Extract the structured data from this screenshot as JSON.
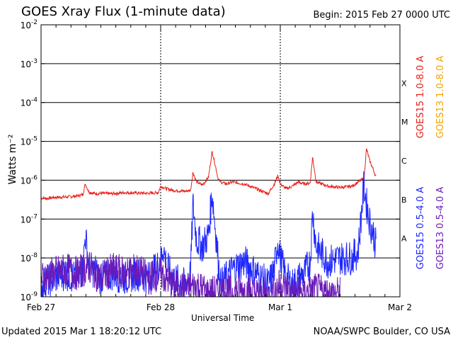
{
  "header": {
    "title": "GOES Xray Flux (1-minute data)",
    "begin": "Begin:  2015 Feb 27 0000 UTC"
  },
  "footer": {
    "updated": "Updated 2015 Mar  1 18:20:12 UTC",
    "credit": "NOAA/SWPC Boulder, CO USA"
  },
  "chart_data": {
    "type": "line",
    "title": "GOES Xray Flux (1-minute data)",
    "xlabel": "Universal Time",
    "ylabel": "Watts m⁻²",
    "yscale": "log",
    "ylim": [
      1e-09,
      0.01
    ],
    "xlim_days": [
      0,
      3
    ],
    "x_ticks": [
      "Feb 27",
      "Feb 28",
      "Mar 1",
      "Mar 2"
    ],
    "y_ticks": [
      {
        "base": "10",
        "exp": "-2"
      },
      {
        "base": "10",
        "exp": "-3"
      },
      {
        "base": "10",
        "exp": "-4"
      },
      {
        "base": "10",
        "exp": "-5"
      },
      {
        "base": "10",
        "exp": "-6"
      },
      {
        "base": "10",
        "exp": "-7"
      },
      {
        "base": "10",
        "exp": "-8"
      },
      {
        "base": "10",
        "exp": "-9"
      }
    ],
    "flare_classes": [
      {
        "label": "X",
        "level": 0.0001
      },
      {
        "label": "M",
        "level": 1e-05
      },
      {
        "label": "C",
        "level": 1e-06
      },
      {
        "label": "B",
        "level": 1e-07
      },
      {
        "label": "A",
        "level": 1e-08
      }
    ],
    "grid": "horizontal solid at decades, vertical dashed at day boundaries",
    "legend": "right side, rotated",
    "series": [
      {
        "name": "GOES15 1.0-8.0 A",
        "color": "#e8201c",
        "x_days": [
          0.0,
          0.05,
          0.1,
          0.2,
          0.3,
          0.35,
          0.37,
          0.4,
          0.45,
          0.5,
          0.6,
          0.7,
          0.8,
          0.9,
          0.98,
          1.0,
          1.05,
          1.1,
          1.2,
          1.25,
          1.27,
          1.3,
          1.35,
          1.4,
          1.43,
          1.45,
          1.48,
          1.5,
          1.55,
          1.6,
          1.7,
          1.8,
          1.9,
          1.95,
          1.98,
          2.0,
          2.05,
          2.1,
          2.15,
          2.2,
          2.25,
          2.27,
          2.3,
          2.4,
          2.5,
          2.6,
          2.65,
          2.7,
          2.72,
          2.75,
          2.78,
          2.8
        ],
        "values": [
          3.5e-07,
          3.4e-07,
          3.6e-07,
          3.7e-07,
          3.9e-07,
          4.3e-07,
          8e-07,
          5e-07,
          4.5e-07,
          4.6e-07,
          4.5e-07,
          4.8e-07,
          4.7e-07,
          4.6e-07,
          4.8e-07,
          7e-07,
          6e-07,
          5.5e-07,
          5.2e-07,
          5.5e-07,
          1.6e-06,
          9e-07,
          7.5e-07,
          1.2e-06,
          5.5e-06,
          3e-06,
          1.1e-06,
          9e-07,
          8e-07,
          9e-07,
          8e-07,
          6e-07,
          4.5e-07,
          8e-07,
          1.3e-06,
          8e-07,
          6e-07,
          7e-07,
          9e-07,
          8e-07,
          8.5e-07,
          4e-06,
          9e-07,
          7e-07,
          6.5e-07,
          7e-07,
          9e-07,
          1.1e-06,
          6.5e-06,
          3e-06,
          1.8e-06,
          1.2e-06
        ]
      },
      {
        "name": "GOES13 1.0-8.0 A",
        "color": "#f5a300",
        "x_days": [],
        "values": []
      },
      {
        "name": "GOES15 0.5-4.0 A",
        "color": "#1d26ff",
        "x_days": [
          0.0,
          0.1,
          0.2,
          0.3,
          0.35,
          0.37,
          0.4,
          0.5,
          0.6,
          0.7,
          0.8,
          0.9,
          1.0,
          1.02,
          1.05,
          1.1,
          1.2,
          1.25,
          1.27,
          1.3,
          1.35,
          1.4,
          1.43,
          1.45,
          1.5,
          1.6,
          1.7,
          1.8,
          1.9,
          1.95,
          1.98,
          2.0,
          2.05,
          2.1,
          2.2,
          2.25,
          2.27,
          2.3,
          2.4,
          2.5,
          2.6,
          2.65,
          2.7,
          2.72,
          2.75,
          2.78,
          2.8
        ],
        "values": [
          2e-09,
          3e-09,
          4e-09,
          3e-09,
          5e-09,
          4e-08,
          6e-09,
          3e-09,
          4e-09,
          3e-09,
          4e-09,
          3e-09,
          8e-09,
          2e-08,
          6e-09,
          3e-09,
          2e-09,
          4e-09,
          2.5e-07,
          3e-08,
          2e-08,
          4e-08,
          5e-07,
          1e-07,
          2e-09,
          5e-09,
          8e-09,
          4e-09,
          2e-09,
          5e-09,
          3e-08,
          1e-08,
          3e-09,
          2e-09,
          4e-09,
          8e-09,
          1.5e-07,
          2e-08,
          8e-09,
          1e-08,
          1e-08,
          1.5e-08,
          8e-07,
          2.5e-07,
          8e-08,
          4e-08,
          2e-08
        ]
      },
      {
        "name": "GOES13 0.5-4.0 A",
        "color": "#6a1bb8",
        "x_days": [
          0.0,
          0.1,
          0.2,
          0.3,
          0.4,
          0.5,
          0.6,
          0.7,
          0.8,
          0.9,
          1.0,
          1.1,
          1.2,
          1.3,
          1.4,
          1.5,
          1.6,
          1.7,
          1.8,
          1.9,
          2.0,
          2.1,
          2.2,
          2.3,
          2.4,
          2.5
        ],
        "values": [
          3e-09,
          4e-09,
          5e-09,
          4e-09,
          6e-09,
          3e-09,
          5e-09,
          4e-09,
          5e-09,
          3e-09,
          4e-09,
          2e-09,
          1.5e-09,
          2e-09,
          1.2e-09,
          1.5e-09,
          1.3e-09,
          1.5e-09,
          1.2e-09,
          1.1e-09,
          2e-09,
          1.3e-09,
          1.2e-09,
          1.5e-09,
          1.2e-09,
          1.2e-09
        ]
      }
    ]
  }
}
